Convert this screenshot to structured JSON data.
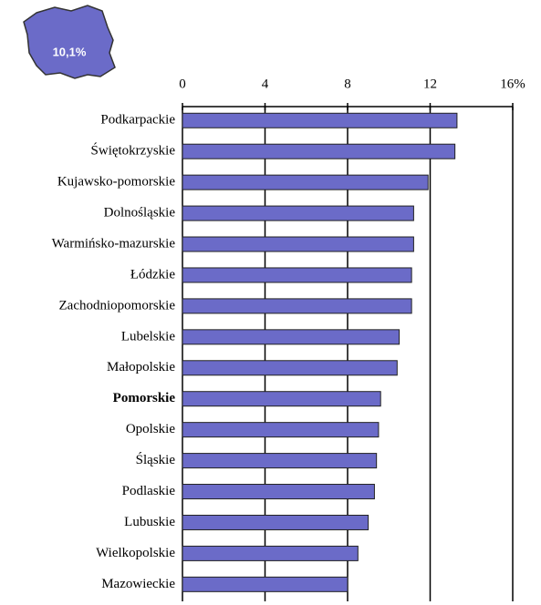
{
  "chart_data": {
    "type": "bar",
    "orientation": "horizontal",
    "annotation": "10,1%",
    "categories": [
      "Podkarpackie",
      "Świętokrzyskie",
      "Kujawsko-pomorskie",
      "Dolnośląskie",
      "Warmińsko-mazurskie",
      "Łódzkie",
      "Zachodniopomorskie",
      "Lubelskie",
      "Małopolskie",
      "Pomorskie",
      "Opolskie",
      "Śląskie",
      "Podlaskie",
      "Lubuskie",
      "Wielkopolskie",
      "Mazowieckie"
    ],
    "values": [
      13.3,
      13.2,
      11.9,
      11.2,
      11.2,
      11.1,
      11.1,
      10.5,
      10.4,
      9.6,
      9.5,
      9.4,
      9.3,
      9.0,
      8.5,
      8.0
    ],
    "color": "#6b6bc8",
    "bold_index": 9,
    "xlim": [
      0,
      16
    ],
    "xticks": [
      0,
      4,
      8,
      12,
      {
        "value": 16,
        "label": "16%"
      }
    ],
    "grid": true
  }
}
